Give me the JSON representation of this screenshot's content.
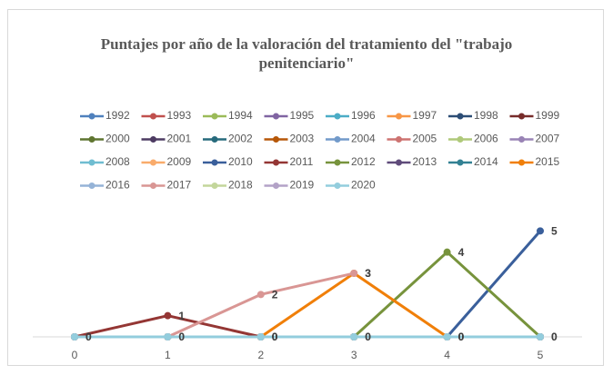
{
  "chart_data": {
    "type": "line",
    "title": "Puntajes por año de la valoración del tratamiento del \"trabajo penitenciario\"",
    "x": [
      0,
      1,
      2,
      3,
      4,
      5
    ],
    "xlim": [
      0,
      5
    ],
    "xticks": [
      0,
      1,
      2,
      3,
      4,
      5
    ],
    "ylim": [
      0,
      6
    ],
    "legend": "top",
    "series": [
      {
        "name": "1992",
        "color": "#4f81bd",
        "values": [
          0,
          0,
          0,
          0,
          0,
          0
        ]
      },
      {
        "name": "1993",
        "color": "#c0504d",
        "values": [
          0,
          0,
          0,
          0,
          0,
          0
        ]
      },
      {
        "name": "1994",
        "color": "#9bbb59",
        "values": [
          0,
          0,
          0,
          0,
          0,
          0
        ]
      },
      {
        "name": "1995",
        "color": "#8064a2",
        "values": [
          0,
          0,
          0,
          0,
          0,
          0
        ]
      },
      {
        "name": "1996",
        "color": "#4bacc6",
        "values": [
          0,
          0,
          0,
          0,
          0,
          0
        ]
      },
      {
        "name": "1997",
        "color": "#f79646",
        "values": [
          0,
          0,
          0,
          0,
          0,
          0
        ]
      },
      {
        "name": "1998",
        "color": "#2c4d75",
        "values": [
          0,
          0,
          0,
          0,
          0,
          0
        ]
      },
      {
        "name": "1999",
        "color": "#772c2a",
        "values": [
          0,
          0,
          0,
          0,
          0,
          0
        ]
      },
      {
        "name": "2000",
        "color": "#5f7530",
        "values": [
          0,
          0,
          0,
          0,
          0,
          0
        ]
      },
      {
        "name": "2001",
        "color": "#4d3b62",
        "values": [
          0,
          0,
          0,
          0,
          0,
          0
        ]
      },
      {
        "name": "2002",
        "color": "#276a7c",
        "values": [
          0,
          0,
          0,
          0,
          0,
          0
        ]
      },
      {
        "name": "2003",
        "color": "#b65708",
        "values": [
          0,
          0,
          0,
          0,
          0,
          0
        ]
      },
      {
        "name": "2004",
        "color": "#729aca",
        "values": [
          0,
          0,
          0,
          0,
          0,
          0
        ]
      },
      {
        "name": "2005",
        "color": "#cd7371",
        "values": [
          0,
          0,
          0,
          0,
          0,
          0
        ]
      },
      {
        "name": "2006",
        "color": "#afc97a",
        "values": [
          0,
          0,
          0,
          0,
          0,
          0
        ]
      },
      {
        "name": "2007",
        "color": "#9983b5",
        "values": [
          0,
          0,
          0,
          0,
          0,
          0
        ]
      },
      {
        "name": "2008",
        "color": "#6fbdd1",
        "values": [
          0,
          0,
          0,
          0,
          0,
          0
        ]
      },
      {
        "name": "2009",
        "color": "#f9ab6b",
        "values": [
          0,
          0,
          0,
          0,
          0,
          0
        ]
      },
      {
        "name": "2010",
        "color": "#3a5f9b",
        "values": [
          null,
          null,
          null,
          null,
          0,
          5
        ],
        "data_labels": true
      },
      {
        "name": "2011",
        "color": "#943634",
        "values": [
          0,
          1,
          0,
          null,
          null,
          null
        ],
        "data_labels": true
      },
      {
        "name": "2012",
        "color": "#77933c",
        "values": [
          null,
          null,
          null,
          0,
          4,
          0
        ],
        "data_labels": true
      },
      {
        "name": "2013",
        "color": "#5f4b7a",
        "values": [
          0,
          0,
          0,
          0,
          0,
          0
        ]
      },
      {
        "name": "2014",
        "color": "#328193",
        "values": [
          0,
          0,
          0,
          0,
          0,
          0
        ]
      },
      {
        "name": "2015",
        "color": "#f07f09",
        "values": [
          null,
          null,
          0,
          3,
          0,
          null
        ],
        "data_labels": true
      },
      {
        "name": "2016",
        "color": "#95b3d7",
        "values": [
          0,
          0,
          0,
          0,
          0,
          0
        ]
      },
      {
        "name": "2017",
        "color": "#d99694",
        "values": [
          null,
          0,
          2,
          3,
          null,
          null
        ],
        "data_labels": true
      },
      {
        "name": "2018",
        "color": "#c3d69b",
        "values": [
          0,
          0,
          0,
          0,
          0,
          0
        ]
      },
      {
        "name": "2019",
        "color": "#b3a2c7",
        "values": [
          0,
          0,
          0,
          0,
          0,
          0
        ]
      },
      {
        "name": "2020",
        "color": "#93cddd",
        "values": [
          0,
          0,
          0,
          0,
          0,
          0
        ],
        "data_labels": true
      }
    ]
  }
}
